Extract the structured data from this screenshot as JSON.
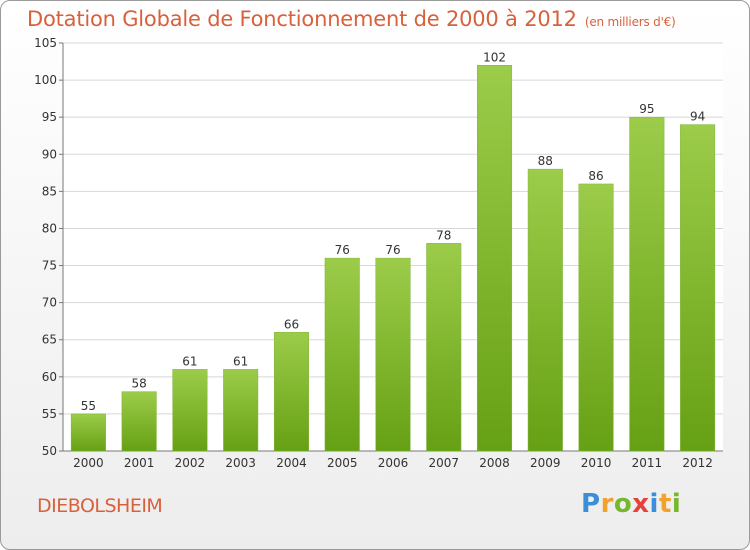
{
  "chart_data": {
    "type": "bar",
    "title": "Dotation Globale de Fonctionnement de 2000 à 2012",
    "subtitle": "(en milliers d'€)",
    "categories": [
      "2000",
      "2001",
      "2002",
      "2003",
      "2004",
      "2005",
      "2006",
      "2007",
      "2008",
      "2009",
      "2010",
      "2011",
      "2012"
    ],
    "values": [
      55,
      58,
      61,
      61,
      66,
      76,
      76,
      78,
      102,
      88,
      86,
      95,
      94
    ],
    "ylim": [
      50,
      105
    ],
    "yticks": [
      50,
      55,
      60,
      65,
      70,
      75,
      80,
      85,
      90,
      95,
      100,
      105
    ],
    "grid": true,
    "bar_color_top": "#9ccc4a",
    "bar_color_bottom": "#66a014"
  },
  "footer": {
    "place": "DIEBOLSHEIM",
    "logo_letters": [
      "P",
      "r",
      "o",
      "x",
      "i",
      "t",
      "i"
    ],
    "logo_colors": [
      "#3a8fd8",
      "#f2a22c",
      "#77b72e",
      "#e8403a",
      "#3a8fd8",
      "#f2a22c",
      "#77b72e"
    ]
  }
}
